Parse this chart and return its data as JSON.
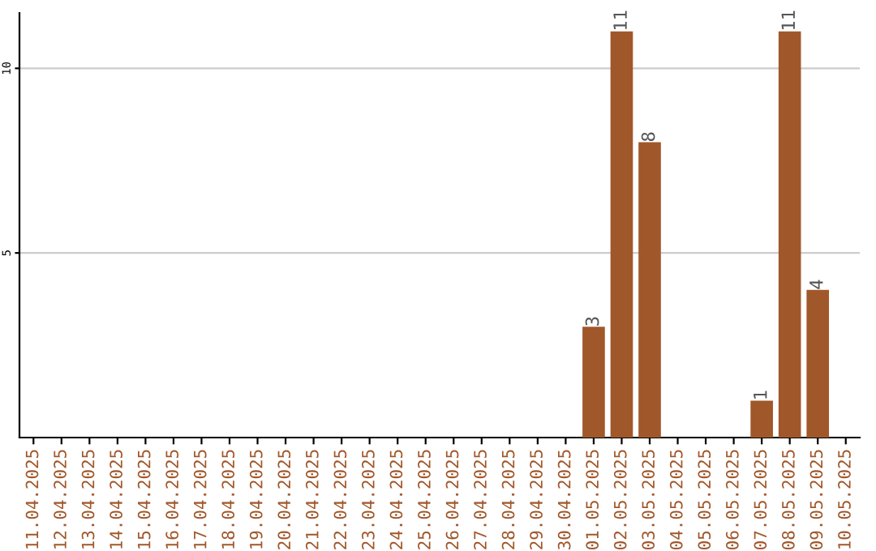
{
  "chart_data": {
    "type": "bar",
    "categories": [
      "11.04.2025",
      "12.04.2025",
      "13.04.2025",
      "14.04.2025",
      "15.04.2025",
      "16.04.2025",
      "17.04.2025",
      "18.04.2025",
      "19.04.2025",
      "20.04.2025",
      "21.04.2025",
      "22.04.2025",
      "23.04.2025",
      "24.04.2025",
      "25.04.2025",
      "26.04.2025",
      "27.04.2025",
      "28.04.2025",
      "29.04.2025",
      "30.04.2025",
      "01.05.2025",
      "02.05.2025",
      "03.05.2025",
      "04.05.2025",
      "05.05.2025",
      "06.05.2025",
      "07.05.2025",
      "08.05.2025",
      "09.05.2025",
      "10.05.2025"
    ],
    "values": [
      0,
      0,
      0,
      0,
      0,
      0,
      0,
      0,
      0,
      0,
      0,
      0,
      0,
      0,
      0,
      0,
      0,
      0,
      0,
      0,
      3,
      11,
      8,
      0,
      0,
      0,
      1,
      11,
      4,
      0
    ],
    "value_labels": [
      null,
      null,
      null,
      null,
      null,
      null,
      null,
      null,
      null,
      null,
      null,
      null,
      null,
      null,
      null,
      null,
      null,
      null,
      null,
      null,
      "3",
      "11",
      "8",
      null,
      null,
      null,
      "1",
      "11",
      "4",
      null
    ],
    "color": "#a0572a",
    "ylim": [
      0,
      11.5
    ],
    "yticks": [
      5,
      10
    ],
    "grid": "y"
  }
}
